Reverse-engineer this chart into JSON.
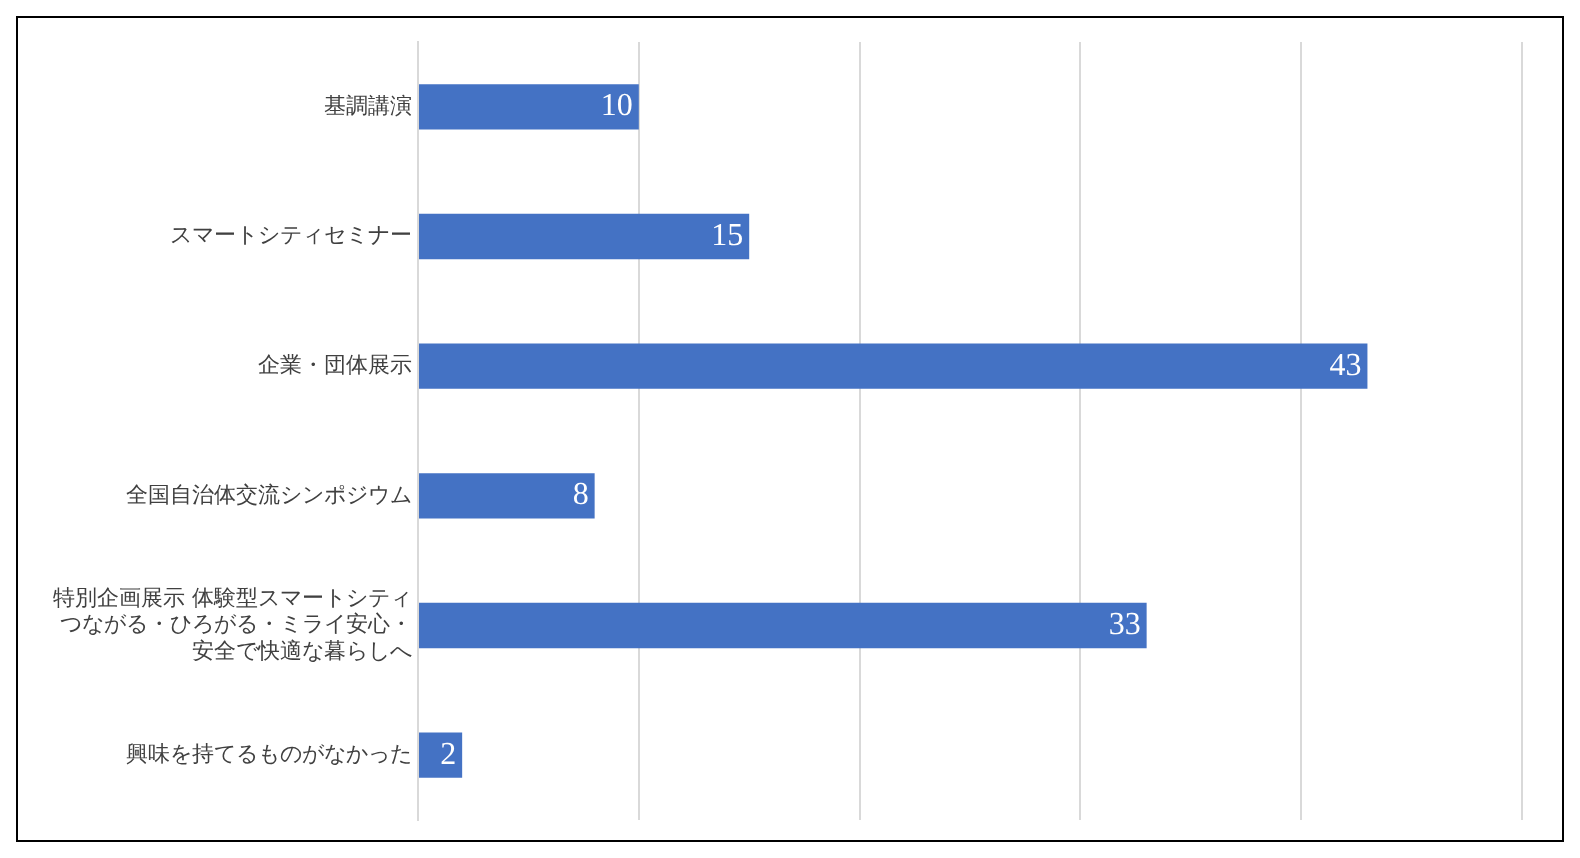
{
  "chart_data": {
    "type": "bar",
    "orientation": "horizontal",
    "categories": [
      "基調講演",
      "スマートシティセミナー",
      "企業・団体展示",
      "全国自治体交流シンポジウム",
      "特別企画展示 体験型スマートシティつながる・ひろがる・ミライ安心・安全で快適な暮らしへ",
      "興味を持てるものがなかった"
    ],
    "values": [
      10,
      15,
      43,
      8,
      33,
      2
    ],
    "color": "#4472c4",
    "xlim": [
      0,
      50
    ],
    "xticks": [
      0,
      10,
      20,
      30,
      40,
      50
    ],
    "tick_labels": "y",
    "grid": "x",
    "legend": false,
    "data_labels": true
  }
}
